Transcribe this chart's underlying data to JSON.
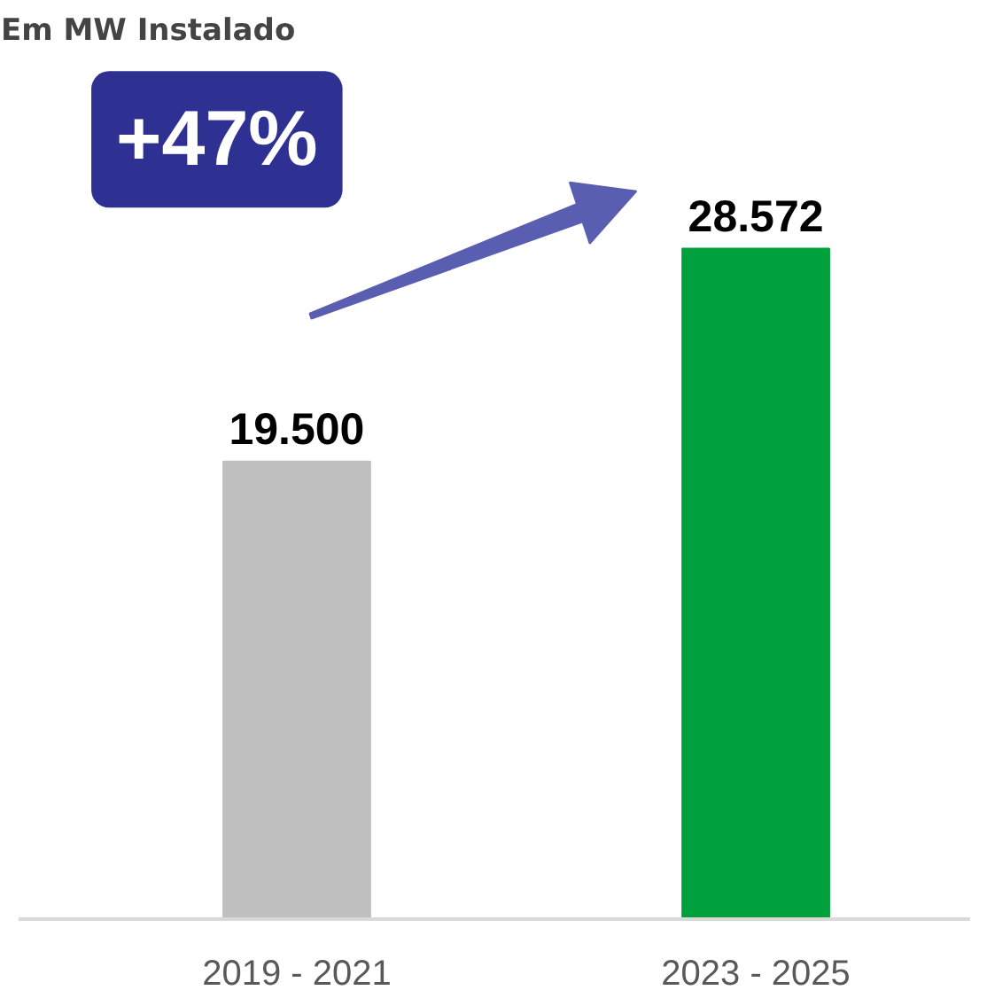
{
  "chart_data": {
    "type": "bar",
    "title": "Em MW Instalado",
    "categories": [
      "2019 - 2021",
      "2023 - 2025"
    ],
    "values": [
      19500,
      28572
    ],
    "colors": [
      "#bfbfbf",
      "#00a03c"
    ],
    "value_labels": [
      "19.500",
      "28.572"
    ],
    "annotations": [
      "+47%"
    ],
    "grid": false,
    "tick_labels": "x"
  }
}
